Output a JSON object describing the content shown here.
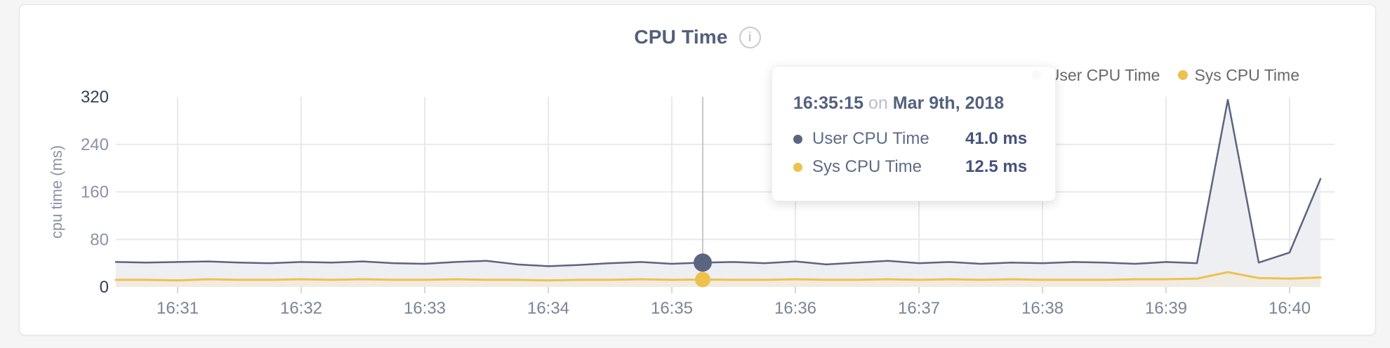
{
  "header": {
    "title": "CPU Time",
    "info_glyph": "i"
  },
  "legend": {
    "items": [
      {
        "label": "User CPU Time"
      },
      {
        "label": "Sys CPU Time"
      }
    ]
  },
  "tooltip": {
    "time": "16:35:15",
    "connector": "on",
    "date": "Mar 9th, 2018",
    "rows": [
      {
        "label": "User CPU Time",
        "value": "41.0 ms"
      },
      {
        "label": "Sys CPU Time",
        "value": "12.5 ms"
      }
    ]
  },
  "theme": {
    "grid": "#e9e9eb",
    "tick": "#d8d8da",
    "highlight_line": "#c8c8ca",
    "x_label": "#7b8497",
    "y_label": "#8a93a4",
    "y_label_strong": "#323e59",
    "axis_title": "#8a93a4",
    "title_color": "#545f7b",
    "user_color": "#5b6580",
    "sys_color": "#eec14f"
  },
  "chart_data": {
    "type": "area",
    "title": "CPU Time",
    "xlabel": "",
    "ylabel": "cpu time (ms)",
    "ylim": [
      0,
      320
    ],
    "yticks": [
      0,
      80,
      160,
      240,
      320
    ],
    "grid": true,
    "legend_position": "top-right",
    "x_unit": "minutes after 16:30 on Mar 9th, 2018",
    "x": [
      0.5,
      0.75,
      1,
      1.25,
      1.5,
      1.75,
      2,
      2.25,
      2.5,
      2.75,
      3,
      3.25,
      3.5,
      3.75,
      4,
      4.25,
      4.5,
      4.75,
      5,
      5.25,
      5.5,
      5.75,
      6,
      6.25,
      6.5,
      6.75,
      7,
      7.25,
      7.5,
      7.75,
      8,
      8.25,
      8.5,
      8.75,
      9,
      9.25,
      9.5,
      9.75,
      10,
      10.25
    ],
    "x_tick_values": [
      1,
      2,
      3,
      4,
      5,
      6,
      7,
      8,
      9,
      10
    ],
    "x_tick_labels": [
      "16:31",
      "16:32",
      "16:33",
      "16:34",
      "16:35",
      "16:36",
      "16:37",
      "16:38",
      "16:39",
      "16:40"
    ],
    "series": [
      {
        "id": "user",
        "name": "User CPU Time",
        "color": "#5b6580",
        "fill": "#edeef2",
        "width": 2.5,
        "values": [
          42,
          41,
          42,
          43,
          41,
          40,
          42,
          41,
          43,
          40,
          39,
          42,
          44,
          38,
          35,
          37,
          40,
          42,
          39,
          41,
          42,
          40,
          43,
          38,
          41,
          44,
          40,
          42,
          39,
          41,
          40,
          42,
          41,
          39,
          42,
          40,
          315,
          41,
          58,
          182
        ]
      },
      {
        "id": "sys",
        "name": "Sys CPU Time",
        "color": "#eec14f",
        "fill": "#f0ebe0",
        "width": 3,
        "values": [
          12,
          12,
          11,
          13,
          12,
          12,
          13,
          12,
          13,
          12,
          12,
          13,
          12,
          12,
          11,
          12,
          12,
          13,
          12,
          12.5,
          12,
          12,
          13,
          12,
          12,
          13,
          12,
          13,
          12,
          13,
          12,
          12,
          12,
          13,
          13,
          14,
          25,
          15,
          14,
          16
        ]
      }
    ],
    "highlight": {
      "x": 5.25,
      "time_label": "16:35:15",
      "user_value": 41.0,
      "sys_value": 12.5
    }
  }
}
